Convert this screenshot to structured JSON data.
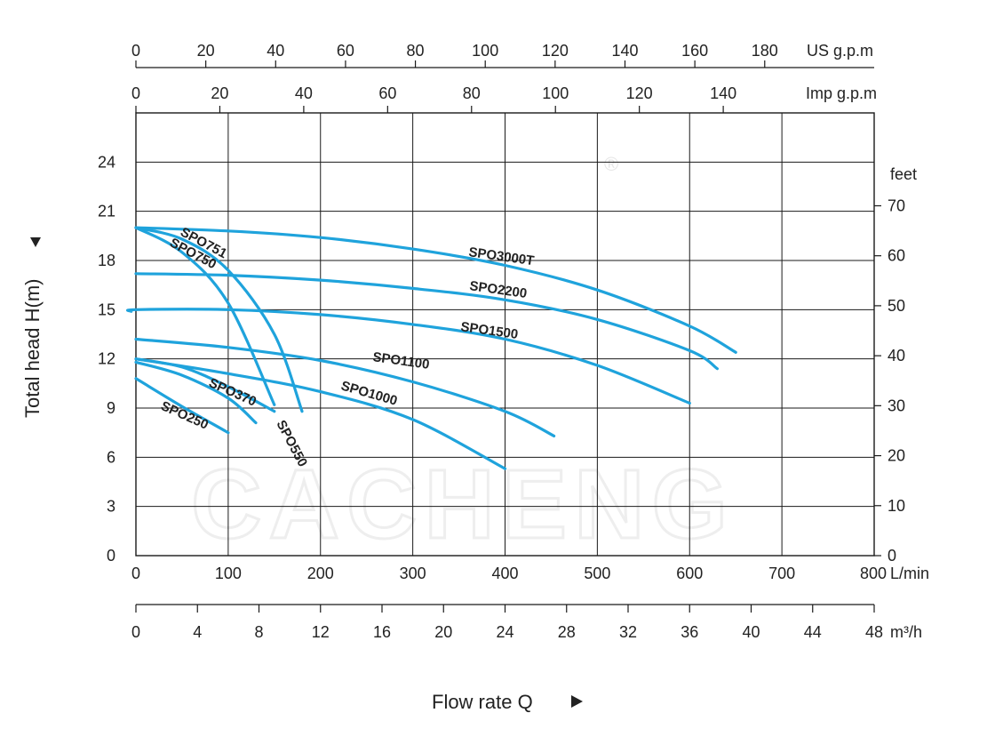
{
  "chart_data": {
    "type": "line",
    "title": "",
    "xlabel": "Flow rate  Q",
    "ylabel": "Total  head H(m)",
    "xlim": [
      0,
      800
    ],
    "ylim": [
      0,
      27
    ],
    "grid": true,
    "axes": {
      "x_lmin": {
        "unit": "L/min",
        "ticks": [
          "0",
          "100",
          "200",
          "300",
          "400",
          "500",
          "600",
          "700",
          "800"
        ]
      },
      "x_m3h": {
        "unit": "m³/h",
        "ticks": [
          "0",
          "4",
          "8",
          "12",
          "16",
          "20",
          "24",
          "28",
          "32",
          "36",
          "40",
          "44",
          "48"
        ]
      },
      "x_usgpm": {
        "unit": "US g.p.m",
        "ticks": [
          "0",
          "20",
          "40",
          "60",
          "80",
          "100",
          "120",
          "140",
          "160",
          "180"
        ]
      },
      "x_impgpm": {
        "unit": "Imp g.p.m",
        "ticks": [
          "0",
          "20",
          "40",
          "60",
          "80",
          "100",
          "120",
          "140"
        ]
      },
      "y_m": {
        "ticks": [
          "0",
          "3",
          "6",
          "9",
          "12",
          "15",
          "18",
          "21",
          "24"
        ]
      },
      "y_feet": {
        "unit": "feet",
        "ticks": [
          "0",
          "10",
          "20",
          "30",
          "40",
          "50",
          "60",
          "70"
        ]
      }
    },
    "series": [
      {
        "name": "SPO3000T",
        "points": [
          [
            0,
            20
          ],
          [
            100,
            19.8
          ],
          [
            200,
            19.4
          ],
          [
            300,
            18.7
          ],
          [
            400,
            17.7
          ],
          [
            500,
            16.2
          ],
          [
            600,
            14
          ],
          [
            650,
            12.4
          ]
        ]
      },
      {
        "name": "SPO2200",
        "points": [
          [
            0,
            17.2
          ],
          [
            100,
            17.1
          ],
          [
            200,
            16.8
          ],
          [
            300,
            16.3
          ],
          [
            400,
            15.6
          ],
          [
            500,
            14.4
          ],
          [
            600,
            12.5
          ],
          [
            630,
            11.4
          ]
        ]
      },
      {
        "name": "SPO1500",
        "points": [
          [
            -5,
            14.9
          ],
          [
            0,
            15
          ],
          [
            100,
            15
          ],
          [
            200,
            14.7
          ],
          [
            300,
            14.1
          ],
          [
            400,
            13.2
          ],
          [
            500,
            11.6
          ],
          [
            600,
            9.3
          ]
        ]
      },
      {
        "name": "SPO1100",
        "points": [
          [
            0,
            13.2
          ],
          [
            100,
            12.7
          ],
          [
            200,
            11.9
          ],
          [
            300,
            10.6
          ],
          [
            400,
            8.8
          ],
          [
            453,
            7.3
          ]
        ]
      },
      {
        "name": "SPO1000",
        "points": [
          [
            0,
            12
          ],
          [
            100,
            11.1
          ],
          [
            200,
            10
          ],
          [
            300,
            8.3
          ],
          [
            400,
            5.3
          ]
        ]
      },
      {
        "name": "SPO751",
        "points": [
          [
            0,
            20
          ],
          [
            50,
            19.3
          ],
          [
            100,
            17.4
          ],
          [
            150,
            13.5
          ],
          [
            180,
            8.8
          ]
        ]
      },
      {
        "name": "SPO750",
        "points": [
          [
            0,
            20
          ],
          [
            50,
            18.5
          ],
          [
            100,
            15.4
          ],
          [
            150,
            9.2
          ]
        ]
      },
      {
        "name": "SPO550",
        "points": [
          [
            0,
            12
          ],
          [
            50,
            11.5
          ],
          [
            100,
            10.3
          ],
          [
            150,
            8.8
          ]
        ]
      },
      {
        "name": "SPO370",
        "points": [
          [
            0,
            11.8
          ],
          [
            50,
            11
          ],
          [
            100,
            9.6
          ],
          [
            130,
            8.1
          ]
        ]
      },
      {
        "name": "SPO250",
        "points": [
          [
            0,
            10.8
          ],
          [
            50,
            9.1
          ],
          [
            100,
            7.5
          ]
        ]
      }
    ],
    "series_color": "#1fa3dc"
  },
  "labels": {
    "SPO3000T": "SPO3000T",
    "SPO2200": "SPO2200",
    "SPO1500": "SPO1500",
    "SPO1100": "SPO1100",
    "SPO1000": "SPO1000",
    "SPO751": "SPO751",
    "SPO750": "SPO750",
    "SPO550": "SPO550",
    "SPO370": "SPO370",
    "SPO250": "SPO250"
  },
  "watermark": "CACHENG",
  "watermark_symbol": "®"
}
